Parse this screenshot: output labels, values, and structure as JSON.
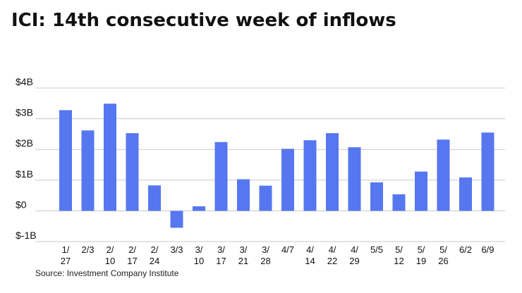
{
  "title": "ICI: 14th consecutive week of inflows",
  "source": "Source: Investment Company Institute",
  "chart_data": {
    "type": "bar",
    "title": "ICI: 14th consecutive week of inflows",
    "xlabel": "",
    "ylabel": "",
    "categories": [
      "1/27",
      "2/3",
      "2/10",
      "2/17",
      "2/24",
      "3/3",
      "3/10",
      "3/17",
      "3/21",
      "3/28",
      "4/7",
      "4/14",
      "4/22",
      "4/29",
      "5/5",
      "5/12",
      "5/19",
      "5/26",
      "6/2",
      "6/9"
    ],
    "category_label_lines": [
      [
        "1/",
        "27"
      ],
      [
        "2/3"
      ],
      [
        "2/",
        "10"
      ],
      [
        "2/",
        "17"
      ],
      [
        "2/",
        "24"
      ],
      [
        "3/3"
      ],
      [
        "3/",
        "10"
      ],
      [
        "3/",
        "17"
      ],
      [
        "3/",
        "21"
      ],
      [
        "3/",
        "28"
      ],
      [
        "4/7"
      ],
      [
        "4/",
        "14"
      ],
      [
        "4/",
        "22"
      ],
      [
        "4/",
        "29"
      ],
      [
        "5/5"
      ],
      [
        "5/",
        "12"
      ],
      [
        "5/",
        "19"
      ],
      [
        "5/",
        "26"
      ],
      [
        "6/2"
      ],
      [
        "6/9"
      ]
    ],
    "values": [
      3.28,
      2.62,
      3.49,
      2.53,
      0.83,
      -0.55,
      0.15,
      2.24,
      1.03,
      0.82,
      2.02,
      2.3,
      2.53,
      2.07,
      0.93,
      0.54,
      1.28,
      2.32,
      1.09,
      2.55
    ],
    "unit": "B",
    "ylim": [
      -1,
      4
    ],
    "yticks": [
      4,
      3,
      2,
      1,
      0,
      -1
    ],
    "ytick_labels": [
      "$4B",
      "$3B",
      "$2B",
      "$1B",
      "$0",
      "$-1B"
    ],
    "grid": true,
    "legend": "none",
    "bar_color": "#5677f0",
    "grid_color": "#c8c8c8"
  }
}
